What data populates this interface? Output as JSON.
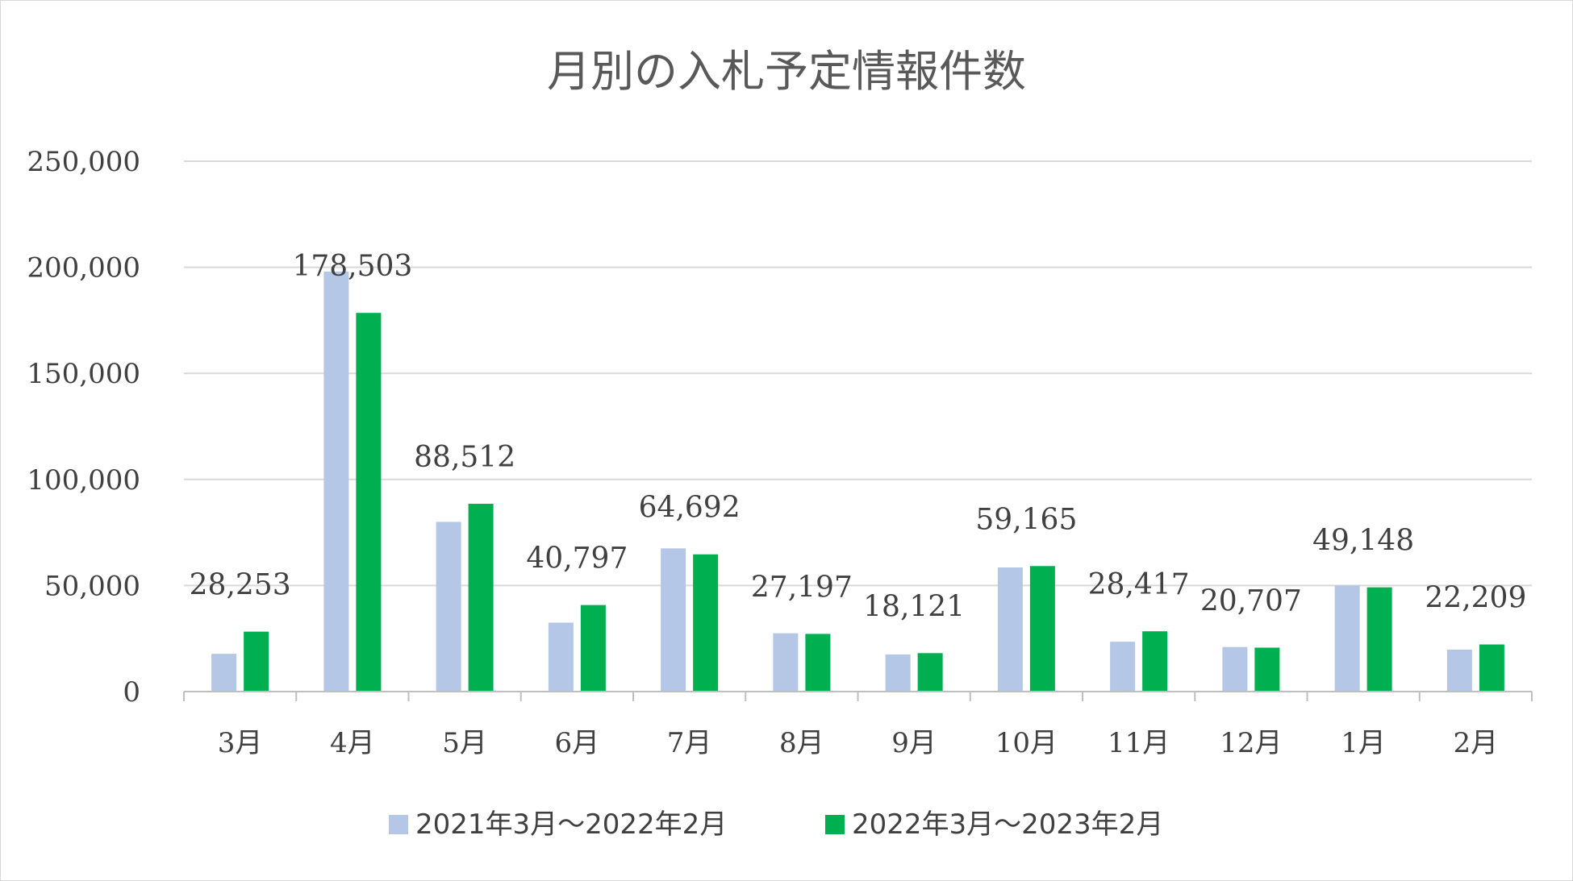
{
  "chart_data": {
    "type": "bar",
    "title": "月別の入札予定情報件数",
    "xlabel": "",
    "ylabel": "",
    "categories": [
      "3月",
      "4月",
      "5月",
      "6月",
      "7月",
      "8月",
      "9月",
      "10月",
      "11月",
      "12月",
      "1月",
      "2月"
    ],
    "series": [
      {
        "name": "2021年3月～2022年2月",
        "color": "#b4c7e7",
        "values": [
          17800,
          198000,
          80000,
          32500,
          67500,
          27500,
          17500,
          58500,
          23500,
          21000,
          50000,
          19800
        ]
      },
      {
        "name": "2022年3月～2023年2月",
        "color": "#00b050",
        "values": [
          28253,
          178503,
          88512,
          40797,
          64692,
          27197,
          18121,
          59165,
          28417,
          20707,
          49148,
          22209
        ]
      }
    ],
    "data_labels": [
      "28,253",
      "178,503",
      "88,512",
      "40,797",
      "64,692",
      "27,197",
      "18,121",
      "59,165",
      "28,417",
      "20,707",
      "49,148",
      "22,209"
    ],
    "y_ticks": [
      0,
      50000,
      100000,
      150000,
      200000,
      250000
    ],
    "y_tick_labels": [
      "0",
      "50,000",
      "100,000",
      "150,000",
      "200,000",
      "250,000"
    ],
    "ylim": [
      0,
      250000
    ],
    "grid": true,
    "legend_position": "bottom",
    "colors": {
      "grid": "#d9d9d9",
      "axis": "#bfbfbf",
      "text": "#404040",
      "title": "#595959"
    }
  }
}
